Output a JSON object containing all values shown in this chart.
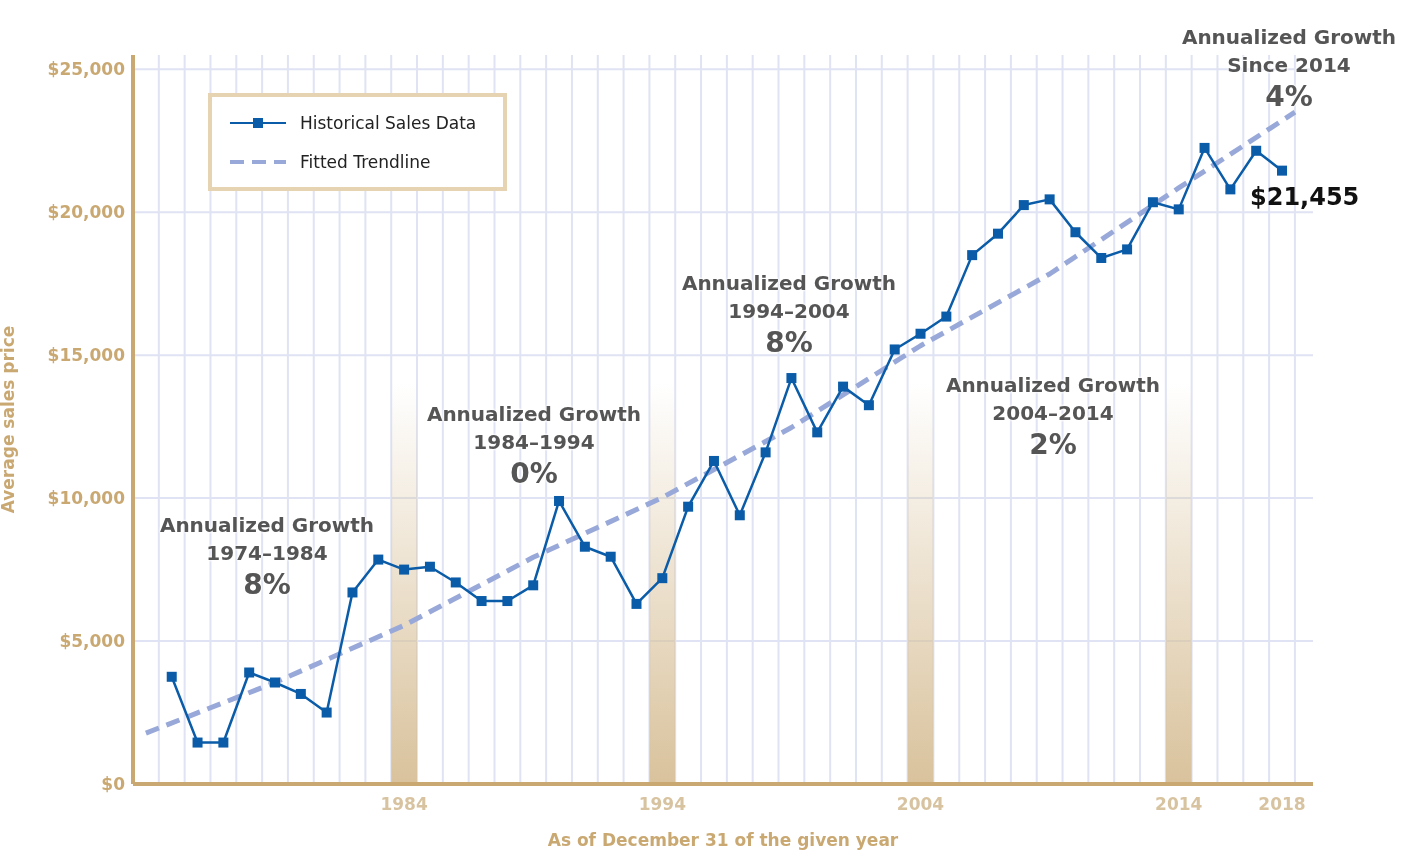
{
  "chart_data": {
    "type": "line",
    "xlabel": "As of December 31 of the given year",
    "ylabel": "Average sales price",
    "xlim": [
      1973.5,
      2019.2
    ],
    "xticks": [
      1984,
      1994,
      2004,
      2014,
      2018
    ],
    "ylim": [
      0,
      25500
    ],
    "yticks": [
      {
        "value": 0,
        "label": "$0"
      },
      {
        "value": 5000,
        "label": "$5,000"
      },
      {
        "value": 10000,
        "label": "$10,000"
      },
      {
        "value": 15000,
        "label": "$15,000"
      },
      {
        "value": 20000,
        "label": "$20,000"
      },
      {
        "value": 25000,
        "label": "$25,000"
      }
    ],
    "grid": true,
    "legend": "top left",
    "series": [
      {
        "name": "Historical Sales Data",
        "color": "#0a5ca8",
        "marker": "square",
        "line_style": "solid",
        "x": [
          1975,
          1976,
          1977,
          1978,
          1979,
          1980,
          1981,
          1982,
          1983,
          1984,
          1985,
          1986,
          1987,
          1988,
          1989,
          1990,
          1991,
          1992,
          1993,
          1994,
          1995,
          1996,
          1997,
          1998,
          1999,
          2000,
          2001,
          2002,
          2003,
          2004,
          2005,
          2006,
          2007,
          2008,
          2009,
          2010,
          2011,
          2012,
          2013,
          2014,
          2015,
          2016,
          2017,
          2018
        ],
        "values": [
          3750,
          1450,
          1450,
          3900,
          3550,
          3150,
          2500,
          6700,
          7850,
          7500,
          7600,
          7050,
          6400,
          6400,
          6950,
          9900,
          8300,
          7950,
          6300,
          7200,
          9700,
          11300,
          9400,
          11600,
          14200,
          12300,
          13900,
          13250,
          15200,
          15750,
          16350,
          18500,
          19250,
          20250,
          20450,
          19300,
          18400,
          18700,
          20350,
          20100,
          22250,
          20800,
          22150,
          21455
        ]
      },
      {
        "name": "Fitted Trendline",
        "color": "#98a8d8",
        "marker": "none",
        "line_style": "dashed",
        "x": [
          1974,
          1979,
          1984,
          1989,
          1994,
          1999,
          2004,
          2009,
          2014,
          2018.5
        ],
        "values": [
          1780,
          3550,
          5550,
          7930,
          10020,
          12470,
          15330,
          17840,
          20850,
          23500
        ]
      }
    ],
    "bands": [
      {
        "axis": "x",
        "from": 1983.5,
        "to": 1984.5,
        "color": "#d9c29c"
      },
      {
        "axis": "x",
        "from": 1993.5,
        "to": 1994.5,
        "color": "#d9c29c"
      },
      {
        "axis": "x",
        "from": 2003.5,
        "to": 2004.5,
        "color": "#d9c29c"
      },
      {
        "axis": "x",
        "from": 2013.5,
        "to": 2014.5,
        "color": "#d9c29c"
      }
    ],
    "annotations": [
      "Annualized Growth\n1974–1984\n8%",
      "Annualized Growth\n1984–1994\n0%",
      "Annualized Growth\n1994–2004\n8%",
      "Annualized Growth\n2004–2014\n2%",
      "Annualized Growth\nSince 2014\n4%",
      {
        "text": "$21,455",
        "x": 2018,
        "y": 21455
      }
    ]
  }
}
